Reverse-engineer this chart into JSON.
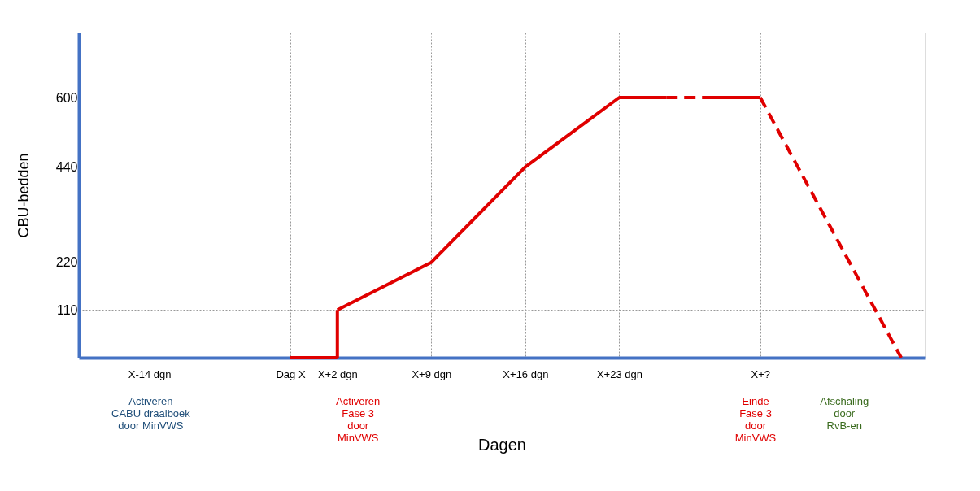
{
  "chart_data": {
    "type": "line",
    "xlabel": "Dagen",
    "ylabel": "CBU-bedden",
    "categories": [
      null,
      "X-14 dgn",
      null,
      null,
      "Dag X",
      "X+2 dgn",
      null,
      "X+9 dgn",
      null,
      "X+16 dgn",
      null,
      "X+23 dgn",
      null,
      null,
      "X+?",
      null,
      null,
      null
    ],
    "ylim": [
      0,
      750
    ],
    "yticks": [
      110,
      220,
      440,
      600
    ],
    "grid": true,
    "legend": false,
    "marker": "none",
    "series": [
      {
        "color": "#e00000",
        "line_style": "solid",
        "values": [
          null,
          null,
          null,
          null,
          0,
          0,
          null,
          null,
          null,
          null,
          null,
          null,
          null,
          null,
          null,
          null,
          null,
          null
        ]
      },
      {
        "color": "#e00000",
        "line_style": "solid",
        "x": [
          "X+2 dgn",
          "X+2 dgn"
        ],
        "values": [
          0,
          110
        ]
      },
      {
        "color": "#e00000",
        "line_style": "solid",
        "values": [
          null,
          null,
          null,
          null,
          null,
          110,
          165,
          220,
          330,
          440,
          520,
          600,
          600,
          null,
          null,
          null,
          null,
          null
        ]
      },
      {
        "color": "#e00000",
        "line_style": "dashed",
        "values": [
          null,
          null,
          null,
          null,
          null,
          null,
          null,
          null,
          null,
          null,
          null,
          null,
          600,
          600,
          null,
          null,
          null,
          null
        ]
      },
      {
        "color": "#e00000",
        "line_style": "solid",
        "values": [
          null,
          null,
          null,
          null,
          null,
          null,
          null,
          null,
          null,
          null,
          null,
          null,
          null,
          600,
          600,
          null,
          null,
          null
        ]
      },
      {
        "color": "#e00000",
        "line_style": "dashed",
        "values": [
          null,
          null,
          null,
          null,
          null,
          null,
          null,
          null,
          null,
          null,
          null,
          null,
          null,
          null,
          600,
          400,
          200,
          0
        ]
      }
    ],
    "annotations": [
      "Activeren\nCABU draaiboek\ndoor MinVWS",
      "Activeren\nFase 3\ndoor\nMinVWS",
      "Einde\nFase 3\ndoor\nMinVWS",
      "Afschaling\ndoor\nRvB-en"
    ]
  }
}
